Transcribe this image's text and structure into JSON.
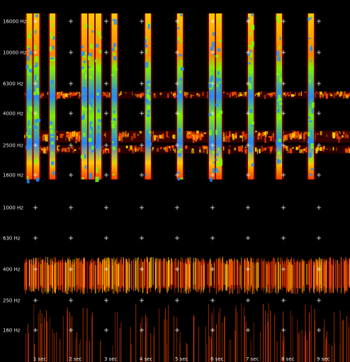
{
  "chart_data": {
    "type": "heatmap",
    "title": "",
    "xlabel": "",
    "ylabel": "",
    "scale": "log-frequency",
    "grid": true,
    "y_ticks": [
      {
        "label": "16000 Hz",
        "value": 16000
      },
      {
        "label": "10000 Hz",
        "value": 10000
      },
      {
        "label": "6300 Hz",
        "value": 6300
      },
      {
        "label": "4000 Hz",
        "value": 4000
      },
      {
        "label": "2500 Hz",
        "value": 2500
      },
      {
        "label": "1600 Hz",
        "value": 1600
      },
      {
        "label": "1000 Hz",
        "value": 1000
      },
      {
        "label": "630 Hz",
        "value": 630
      },
      {
        "label": "400 Hz",
        "value": 400
      },
      {
        "label": "250 Hz",
        "value": 250
      },
      {
        "label": "160 Hz",
        "value": 160
      }
    ],
    "x_ticks": [
      {
        "label": "1 sec",
        "value": 1
      },
      {
        "label": "2 sec",
        "value": 2
      },
      {
        "label": "3 sec",
        "value": 3
      },
      {
        "label": "4 sec",
        "value": 4
      },
      {
        "label": "5 sec",
        "value": 5
      },
      {
        "label": "6 sec",
        "value": 6
      },
      {
        "label": "7 sec",
        "value": 7
      },
      {
        "label": "8 sec",
        "value": 8
      },
      {
        "label": "9 sec",
        "value": 9
      }
    ],
    "xlim": [
      0.3,
      9.9
    ],
    "ylim": [
      130,
      20000
    ],
    "pulses_sec": [
      0.55,
      0.75,
      1.2,
      2.1,
      2.3,
      2.5,
      2.95,
      3.9,
      4.8,
      5.7,
      5.9,
      6.8,
      7.6,
      8.5
    ],
    "pulse_freq_range_hz": [
      1500,
      18000
    ],
    "bands": [
      {
        "name": "5000-5600 Hz band",
        "range_hz": [
          5000,
          5600
        ],
        "level": 0.55
      },
      {
        "name": "2600-3100 Hz band",
        "range_hz": [
          2600,
          3100
        ],
        "level": 0.7
      },
      {
        "name": "2200-2500 Hz band",
        "range_hz": [
          2200,
          2500
        ],
        "level": 0.5
      },
      {
        "name": "300-450 Hz band",
        "range_hz": [
          300,
          450
        ],
        "level": 0.6
      }
    ],
    "colors": {
      "background": "#000000",
      "low": "#8b0000",
      "mid_low": "#ff4500",
      "mid": "#ffd700",
      "mid_high": "#7cfc00",
      "high": "#1e90ff"
    }
  }
}
